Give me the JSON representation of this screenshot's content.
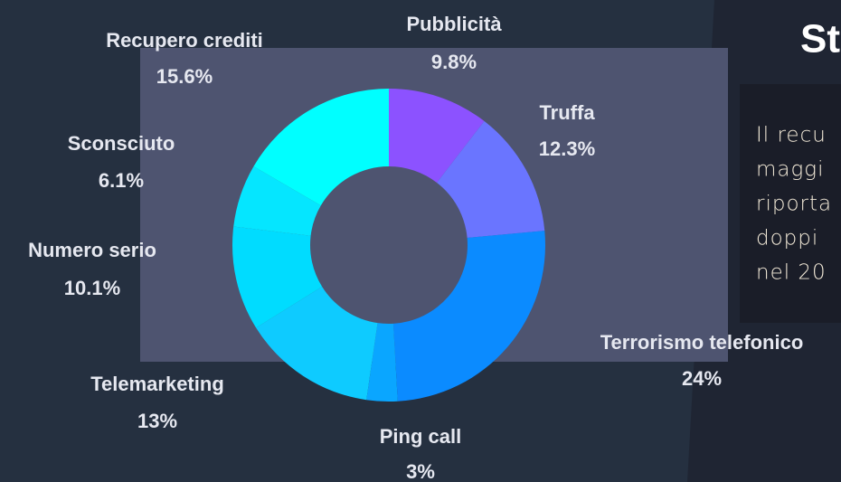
{
  "chart_data": {
    "type": "donut",
    "categories": [
      "Pubblicità",
      "Truffa",
      "Terrorismo telefonico",
      "Ping call",
      "Telemarketing",
      "Numero serio",
      "Sconsciuto",
      "Recupero crediti"
    ],
    "values": [
      9.8,
      12.3,
      24,
      3,
      13,
      10.1,
      6.1,
      15.6
    ],
    "value_labels": [
      "9.8%",
      "12.3%",
      "24%",
      "3%",
      "13%",
      "10.1%",
      "6.1%",
      "15.6%"
    ],
    "colors": [
      "#8c52ff",
      "#6a75ff",
      "#0b8bff",
      "#0aa6ff",
      "#0ecbff",
      "#00dcff",
      "#05e6ff",
      "#00ffff"
    ]
  },
  "side_panel": {
    "title": "St",
    "lines": [
      "Il recu",
      "maggi",
      "riporta",
      "doppi",
      "nel 20"
    ]
  }
}
